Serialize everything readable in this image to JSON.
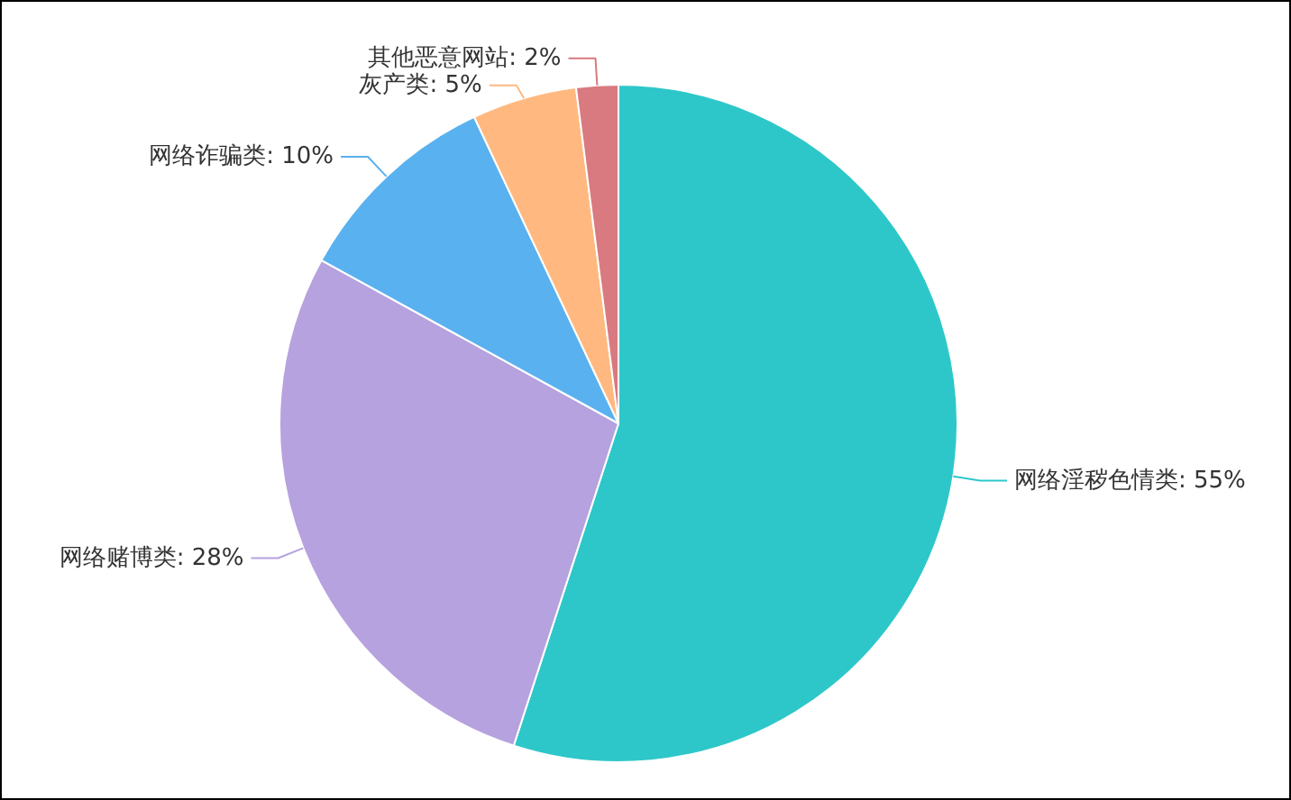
{
  "chart_data": {
    "type": "pie",
    "categories": [
      "网络淫秽色情类",
      "网络赌博类",
      "网络诈骗类",
      "灰产类",
      "其他恶意网站"
    ],
    "values": [
      55,
      28,
      10,
      5,
      2
    ],
    "value_labels": [
      ": 55%",
      ": 28%",
      ": 10%",
      ": 5%",
      ": 2%"
    ],
    "colors": [
      "#2ec7c9",
      "#b6a2de",
      "#5ab1ef",
      "#ffb980",
      "#d87a80"
    ],
    "legend": false
  }
}
